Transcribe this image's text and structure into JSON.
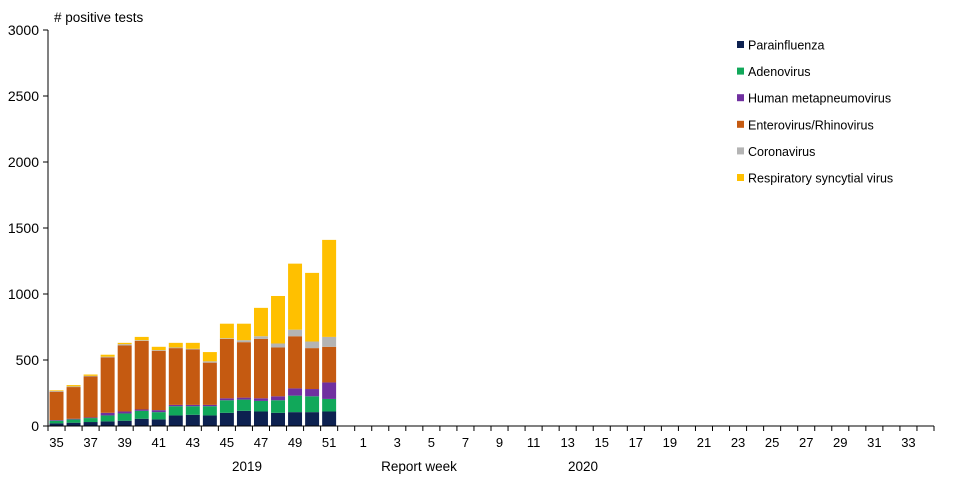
{
  "chart_data": {
    "type": "bar",
    "stacked": true,
    "ylabel": "# positive tests",
    "xlabel": "Report  week",
    "ylim": [
      0,
      3000
    ],
    "y_ticks": [
      0,
      500,
      1000,
      1500,
      2000,
      2500,
      3000
    ],
    "year_labels": [
      "2019",
      "2020"
    ],
    "weeks": [
      35,
      36,
      37,
      38,
      39,
      40,
      41,
      42,
      43,
      44,
      45,
      46,
      47,
      48,
      49,
      50,
      51,
      52,
      1,
      2,
      3,
      4,
      5,
      6,
      7,
      8,
      9,
      10,
      11,
      12,
      13,
      14,
      15,
      16,
      17,
      18,
      19,
      20,
      21,
      22,
      23,
      24,
      25,
      26,
      27,
      28,
      29,
      30,
      31,
      32,
      33,
      34
    ],
    "tick_labels": [
      "35",
      "37",
      "39",
      "41",
      "43",
      "45",
      "47",
      "49",
      "51",
      "1",
      "3",
      "5",
      "7",
      "9",
      "11",
      "13",
      "15",
      "17",
      "19",
      "21",
      "23",
      "25",
      "27",
      "29",
      "31",
      "33"
    ],
    "series": [
      {
        "name": "Parainfluenza",
        "color": "#0d2150",
        "values": [
          20,
          25,
          30,
          35,
          40,
          55,
          50,
          80,
          85,
          80,
          100,
          115,
          110,
          100,
          105,
          105,
          110
        ]
      },
      {
        "name": "Adenovirus",
        "color": "#11a85a",
        "values": [
          20,
          25,
          30,
          45,
          55,
          60,
          55,
          70,
          65,
          70,
          95,
          85,
          80,
          95,
          125,
          120,
          95
        ]
      },
      {
        "name": "Human metapneumovirus",
        "color": "#7030a0",
        "values": [
          5,
          5,
          5,
          20,
          15,
          10,
          15,
          10,
          10,
          10,
          15,
          15,
          20,
          30,
          55,
          55,
          125
        ]
      },
      {
        "name": "Enterovirus/Rhinovirus",
        "color": "#c55a11",
        "values": [
          215,
          240,
          310,
          420,
          500,
          520,
          450,
          430,
          420,
          320,
          450,
          420,
          450,
          370,
          395,
          310,
          270
        ]
      },
      {
        "name": "Coronavirus",
        "color": "#b4b4b4",
        "values": [
          5,
          5,
          5,
          5,
          10,
          5,
          5,
          5,
          5,
          10,
          5,
          15,
          20,
          30,
          50,
          50,
          75
        ]
      },
      {
        "name": "Respiratory syncytial virus",
        "color": "#ffc000",
        "values": [
          5,
          10,
          10,
          15,
          10,
          25,
          25,
          35,
          45,
          70,
          110,
          125,
          215,
          360,
          500,
          520,
          735
        ]
      }
    ]
  }
}
